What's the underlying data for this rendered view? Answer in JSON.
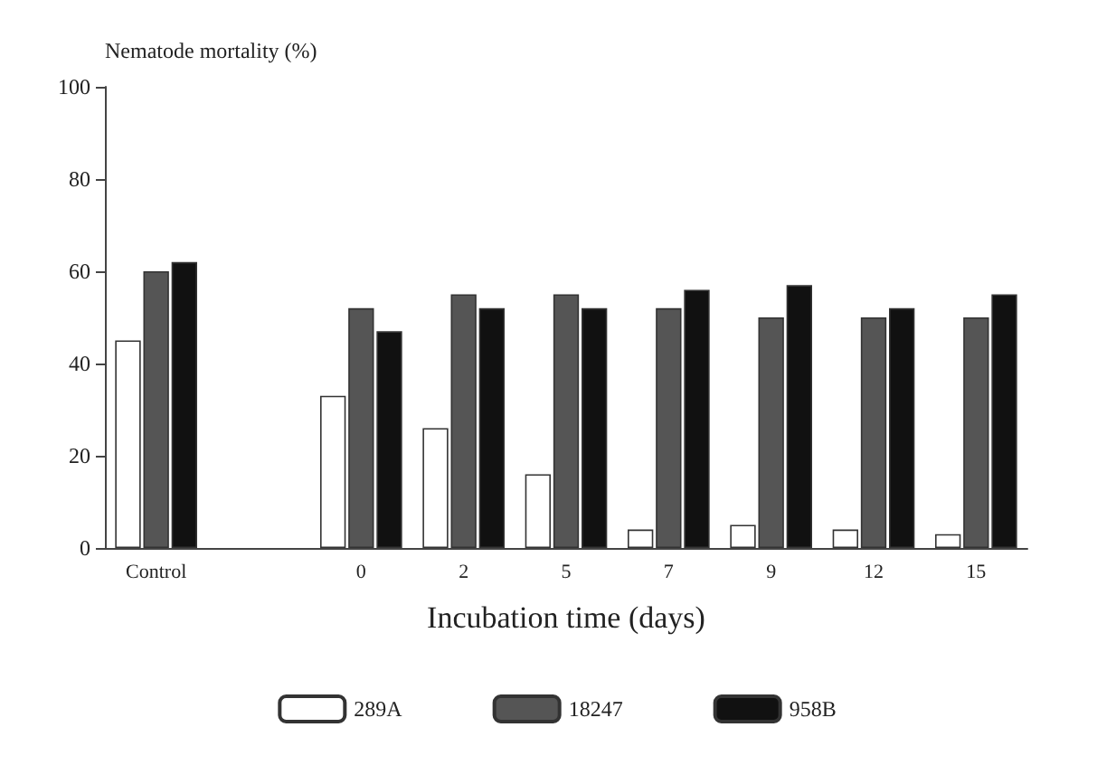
{
  "chart_data": {
    "type": "bar",
    "ylabel": "Nematode mortality (%)",
    "xlabel": "Incubation time (days)",
    "categories": [
      "Control",
      null,
      "0",
      "2",
      "5",
      "7",
      "9",
      "12",
      "15"
    ],
    "series": [
      {
        "name": "289A",
        "color": "#ffffff",
        "values": [
          45,
          null,
          33,
          26,
          16,
          4,
          5,
          4,
          3
        ]
      },
      {
        "name": "18247",
        "color": "#555555",
        "values": [
          60,
          null,
          52,
          55,
          55,
          52,
          50,
          50,
          50
        ]
      },
      {
        "name": "958B",
        "color": "#111111",
        "values": [
          62,
          null,
          47,
          52,
          52,
          56,
          57,
          52,
          55
        ]
      }
    ],
    "ylim": [
      0,
      100
    ],
    "yticks": [
      0,
      20,
      40,
      60,
      80,
      100
    ],
    "grid": false,
    "legend": "bottom"
  }
}
